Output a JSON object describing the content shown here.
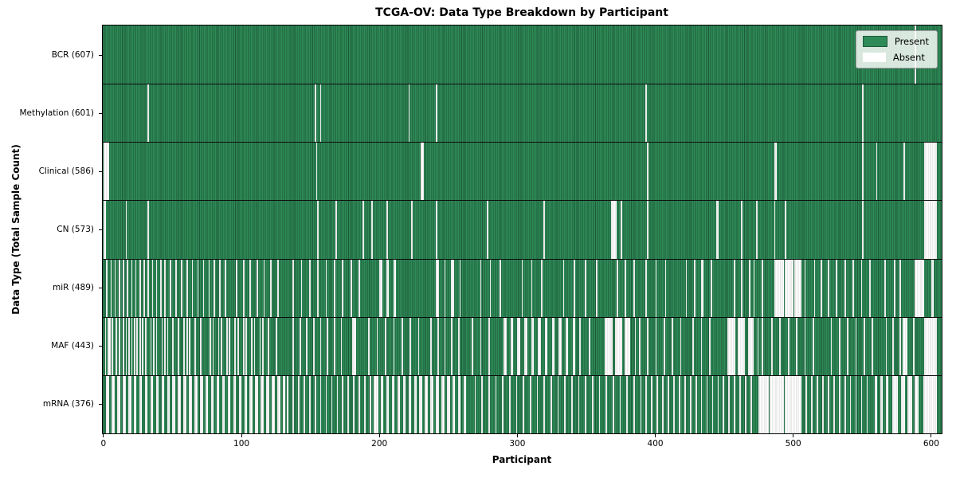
{
  "chart_data": {
    "type": "heatmap",
    "title": "TCGA-OV: Data Type Breakdown by Participant",
    "xlabel": "Participant",
    "ylabel": "Data Type (Total Sample Count)",
    "x_ticks": [
      0,
      100,
      200,
      300,
      400,
      500,
      600
    ],
    "n_participants": 608,
    "x_axis_range": [
      -0.5,
      608.5
    ],
    "grid": false,
    "colors": {
      "present": "#2e8b57",
      "present_edge": "#1d5a39",
      "absent": "#ffffff",
      "absent_edge": "#d6d6d6",
      "plot_border": "#000000",
      "background": "#ffffff"
    },
    "legend": {
      "position": "upper right",
      "entries": [
        {
          "label": "Present",
          "color": "#2e8b57"
        },
        {
          "label": "Absent",
          "color": "#ffffff"
        }
      ]
    },
    "rows": [
      {
        "data_type": "BCR",
        "label": "BCR (607)",
        "present_count": 607,
        "absent_count": 1,
        "absent_ranges": [
          588
        ]
      },
      {
        "data_type": "Methylation",
        "label": "Methylation (601)",
        "present_count": 601,
        "absent_count": 7,
        "absent_ranges": [
          32,
          153,
          157,
          221,
          241,
          393,
          550
        ]
      },
      {
        "data_type": "Clinical",
        "label": "Clinical (586)",
        "present_count": 586,
        "absent_count": 22,
        "absent_ranges": [
          [
            0,
            3
          ],
          154,
          [
            230,
            231
          ],
          394,
          [
            486,
            487
          ],
          550,
          560,
          580,
          [
            595,
            603
          ]
        ]
      },
      {
        "data_type": "CN",
        "label": "CN (573)",
        "present_count": 573,
        "absent_count": 35,
        "absent_ranges": [
          [
            0,
            1
          ],
          16,
          32,
          155,
          168,
          188,
          194,
          205,
          223,
          241,
          278,
          319,
          [
            368,
            371
          ],
          375,
          394,
          [
            444,
            445
          ],
          462,
          473,
          486,
          494,
          550,
          [
            595,
            603
          ]
        ]
      },
      {
        "data_type": "miR",
        "label": "miR (489)",
        "present_count": 489,
        "absent_count": 119,
        "absent_ranges": [
          2,
          5,
          8,
          11,
          14,
          17,
          20,
          23,
          26,
          29,
          32,
          35,
          38,
          41,
          44,
          48,
          52,
          56,
          60,
          64,
          68,
          72,
          76,
          80,
          84,
          88,
          96,
          101,
          106,
          111,
          116,
          121,
          126,
          137,
          143,
          149,
          155,
          161,
          167,
          173,
          179,
          185,
          [
            200,
            201
          ],
          [
            205,
            206
          ],
          [
            210,
            211
          ],
          [
            241,
            242
          ],
          247,
          [
            252,
            253
          ],
          258,
          273,
          280,
          287,
          303,
          310,
          317,
          333,
          341,
          349,
          357,
          372,
          378,
          384,
          393,
          400,
          407,
          422,
          428,
          [
            433,
            434
          ],
          440,
          457,
          462,
          468,
          471,
          477,
          [
            486,
            492
          ],
          [
            494,
            499
          ],
          [
            501,
            505
          ],
          508,
          515,
          520,
          525,
          531,
          537,
          543,
          549,
          555,
          566,
          573,
          577,
          [
            588,
            594
          ],
          [
            600,
            601
          ]
        ]
      },
      {
        "data_type": "MAF",
        "label": "MAF (443)",
        "present_count": 443,
        "absent_count": 165,
        "absent_ranges": [
          1,
          [
            3,
            4
          ],
          6,
          9,
          11,
          14,
          16,
          18,
          20,
          22,
          24,
          26,
          28,
          30,
          34,
          36,
          38,
          42,
          44,
          46,
          50,
          54,
          58,
          60,
          62,
          66,
          70,
          77,
          79,
          83,
          85,
          89,
          91,
          95,
          97,
          101,
          103,
          107,
          109,
          113,
          115,
          119,
          125,
          137,
          142,
          147,
          152,
          157,
          162,
          167,
          172,
          [
            180,
            182
          ],
          192,
          198,
          204,
          210,
          216,
          222,
          228,
          237,
          242,
          247,
          252,
          257,
          267,
          273,
          279,
          [
            290,
            291
          ],
          [
            295,
            296
          ],
          [
            300,
            301
          ],
          [
            305,
            306
          ],
          [
            310,
            311
          ],
          [
            315,
            316
          ],
          [
            320,
            321
          ],
          [
            325,
            326
          ],
          [
            330,
            331
          ],
          [
            335,
            336
          ],
          [
            340,
            341
          ],
          345,
          352,
          [
            363,
            368
          ],
          [
            371,
            375
          ],
          [
            378,
            381
          ],
          385,
          388,
          394,
          400,
          406,
          412,
          418,
          427,
          433,
          439,
          [
            452,
            457
          ],
          [
            460,
            464
          ],
          [
            467,
            470
          ],
          474,
          477,
          484,
          490,
          496,
          502,
          508,
          514,
          527,
          533,
          539,
          545,
          551,
          557,
          567,
          572,
          577,
          [
            579,
            582
          ],
          587,
          [
            595,
            603
          ]
        ]
      },
      {
        "data_type": "mRNA",
        "label": "mRNA (376)",
        "present_count": 376,
        "absent_count": 232,
        "absent_ranges": [
          [
            2,
            3
          ],
          [
            6,
            7
          ],
          [
            10,
            11
          ],
          [
            14,
            15
          ],
          [
            18,
            19
          ],
          [
            22,
            23
          ],
          [
            26,
            27
          ],
          [
            30,
            31
          ],
          [
            34,
            35
          ],
          [
            38,
            39
          ],
          [
            42,
            43
          ],
          [
            46,
            47
          ],
          [
            50,
            51
          ],
          [
            54,
            55
          ],
          [
            58,
            59
          ],
          [
            62,
            63
          ],
          [
            66,
            67
          ],
          [
            70,
            71
          ],
          [
            74,
            75
          ],
          [
            78,
            79
          ],
          [
            82,
            83
          ],
          [
            86,
            87
          ],
          [
            90,
            91
          ],
          [
            94,
            95
          ],
          [
            98,
            99
          ],
          [
            102,
            103
          ],
          [
            106,
            107
          ],
          [
            110,
            111
          ],
          [
            114,
            115
          ],
          [
            118,
            119
          ],
          [
            122,
            123
          ],
          [
            126,
            127
          ],
          [
            130,
            131
          ],
          133,
          137,
          141,
          145,
          149,
          153,
          157,
          161,
          165,
          169,
          173,
          177,
          181,
          185,
          189,
          193,
          [
            196,
            198
          ],
          [
            201,
            202
          ],
          [
            205,
            206
          ],
          [
            209,
            210
          ],
          [
            213,
            214
          ],
          [
            217,
            218
          ],
          [
            221,
            222
          ],
          [
            225,
            226
          ],
          [
            229,
            230
          ],
          [
            233,
            234
          ],
          [
            237,
            238
          ],
          [
            241,
            242
          ],
          [
            245,
            246
          ],
          [
            249,
            250
          ],
          [
            253,
            254
          ],
          [
            257,
            258
          ],
          [
            261,
            262
          ],
          269,
          274,
          279,
          284,
          289,
          294,
          299,
          304,
          309,
          314,
          319,
          324,
          329,
          334,
          339,
          344,
          349,
          354,
          359,
          364,
          369,
          374,
          379,
          384,
          389,
          393,
          397,
          401,
          405,
          409,
          413,
          417,
          421,
          425,
          429,
          433,
          437,
          441,
          445,
          449,
          453,
          457,
          461,
          465,
          469,
          [
            475,
            481
          ],
          [
            483,
            492
          ],
          [
            494,
            505
          ],
          509,
          513,
          517,
          521,
          525,
          529,
          533,
          537,
          541,
          545,
          549,
          553,
          [
            559,
            560
          ],
          [
            563,
            564
          ],
          [
            567,
            568
          ],
          [
            572,
            575
          ],
          [
            578,
            580
          ],
          [
            583,
            585
          ],
          [
            588,
            590
          ],
          [
            594,
            603
          ]
        ]
      }
    ]
  }
}
